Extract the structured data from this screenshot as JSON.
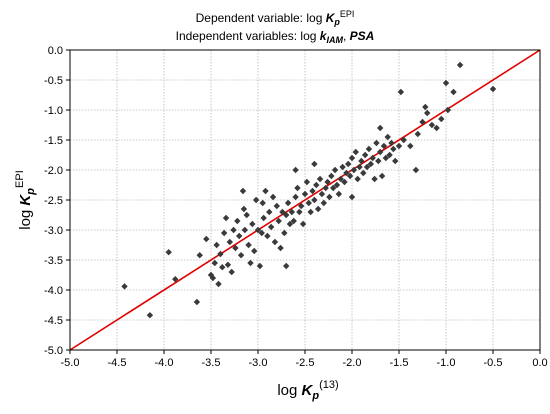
{
  "chart_data": {
    "type": "scatter",
    "title_lines": [
      {
        "prefix": "Dependent variable: log ",
        "bold_var": "K",
        "bold_sub": "p",
        "sup": "EPI",
        "mid": "",
        "bold_var2": ""
      },
      {
        "prefix": "Independent variables: log ",
        "bold_var": "k",
        "bold_sub": "IAM",
        "sup": "",
        "mid": ", ",
        "bold_var2": "PSA"
      }
    ],
    "xlabel": {
      "prefix": "log ",
      "bold_var": "K",
      "bold_sub": "p",
      "sup": "(13)"
    },
    "ylabel": {
      "prefix": "log ",
      "bold_var": "K",
      "bold_sub": "p",
      "sup": "EPI"
    },
    "xlim": [
      -5.0,
      0.0
    ],
    "ylim": [
      -5.0,
      0.0
    ],
    "x_ticks": [
      "-5.0",
      "-4.5",
      "-4.0",
      "-3.5",
      "-3.0",
      "-2.5",
      "-2.0",
      "-1.5",
      "-1.0",
      "-0.5",
      "0.0"
    ],
    "y_ticks": [
      "0.0",
      "-0.5",
      "-1.0",
      "-1.5",
      "-2.0",
      "-2.5",
      "-3.0",
      "-3.5",
      "-4.0",
      "-4.5",
      "-5.0"
    ],
    "grid": true,
    "colors": {
      "points": "#3a3a3a",
      "line": "#e00000",
      "grid": "#b8b8b8",
      "axis": "#000000"
    },
    "reference_line": {
      "x": [
        -5.0,
        0.0
      ],
      "y": [
        -5.0,
        0.0
      ]
    },
    "points": [
      [
        -4.42,
        -3.94
      ],
      [
        -4.15,
        -4.42
      ],
      [
        -3.95,
        -3.37
      ],
      [
        -3.88,
        -3.82
      ],
      [
        -3.65,
        -4.2
      ],
      [
        -3.62,
        -3.42
      ],
      [
        -3.5,
        -3.75
      ],
      [
        -3.48,
        -3.8
      ],
      [
        -3.46,
        -3.55
      ],
      [
        -3.44,
        -3.25
      ],
      [
        -3.42,
        -3.9
      ],
      [
        -3.4,
        -3.4
      ],
      [
        -3.38,
        -3.62
      ],
      [
        -3.36,
        -3.05
      ],
      [
        -3.34,
        -2.8
      ],
      [
        -3.32,
        -3.58
      ],
      [
        -3.3,
        -3.2
      ],
      [
        -3.28,
        -3.7
      ],
      [
        -3.26,
        -3.0
      ],
      [
        -3.24,
        -3.3
      ],
      [
        -3.22,
        -2.85
      ],
      [
        -3.2,
        -3.1
      ],
      [
        -3.18,
        -3.42
      ],
      [
        -3.16,
        -2.35
      ],
      [
        -3.14,
        -3.0
      ],
      [
        -3.12,
        -2.75
      ],
      [
        -3.1,
        -3.25
      ],
      [
        -3.08,
        -3.55
      ],
      [
        -3.06,
        -2.9
      ],
      [
        -3.04,
        -3.35
      ],
      [
        -3.02,
        -2.5
      ],
      [
        -3.0,
        -3.0
      ],
      [
        -2.98,
        -3.6
      ],
      [
        -2.96,
        -3.05
      ],
      [
        -2.94,
        -2.8
      ],
      [
        -2.92,
        -2.35
      ],
      [
        -2.9,
        -3.1
      ],
      [
        -2.88,
        -2.7
      ],
      [
        -2.86,
        -2.95
      ],
      [
        -2.84,
        -2.45
      ],
      [
        -2.82,
        -3.2
      ],
      [
        -2.8,
        -2.6
      ],
      [
        -2.78,
        -2.85
      ],
      [
        -2.76,
        -3.3
      ],
      [
        -2.74,
        -2.7
      ],
      [
        -2.72,
        -3.05
      ],
      [
        -2.7,
        -2.75
      ],
      [
        -2.68,
        -2.55
      ],
      [
        -2.66,
        -2.9
      ],
      [
        -2.64,
        -2.7
      ],
      [
        -2.62,
        -2.85
      ],
      [
        -2.6,
        -2.45
      ],
      [
        -2.58,
        -2.3
      ],
      [
        -2.56,
        -2.7
      ],
      [
        -2.54,
        -2.6
      ],
      [
        -2.52,
        -2.9
      ],
      [
        -2.5,
        -2.4
      ],
      [
        -2.48,
        -2.2
      ],
      [
        -2.46,
        -2.55
      ],
      [
        -2.44,
        -2.7
      ],
      [
        -2.42,
        -2.35
      ],
      [
        -2.4,
        -2.5
      ],
      [
        -2.38,
        -2.25
      ],
      [
        -2.36,
        -2.65
      ],
      [
        -2.34,
        -2.15
      ],
      [
        -2.32,
        -2.4
      ],
      [
        -2.3,
        -2.55
      ],
      [
        -2.28,
        -2.3
      ],
      [
        -2.26,
        -2.2
      ],
      [
        -2.24,
        -2.45
      ],
      [
        -2.22,
        -2.1
      ],
      [
        -2.2,
        -2.3
      ],
      [
        -2.18,
        -2.0
      ],
      [
        -2.16,
        -2.25
      ],
      [
        -2.14,
        -2.4
      ],
      [
        -2.12,
        -2.15
      ],
      [
        -2.1,
        -1.95
      ],
      [
        -2.08,
        -2.2
      ],
      [
        -2.06,
        -2.05
      ],
      [
        -2.04,
        -1.9
      ],
      [
        -2.02,
        -2.1
      ],
      [
        -2.0,
        -1.8
      ],
      [
        -1.98,
        -2.0
      ],
      [
        -1.96,
        -1.7
      ],
      [
        -1.94,
        -2.15
      ],
      [
        -1.92,
        -1.95
      ],
      [
        -1.9,
        -1.85
      ],
      [
        -1.88,
        -2.05
      ],
      [
        -1.86,
        -1.75
      ],
      [
        -1.84,
        -1.95
      ],
      [
        -1.82,
        -1.65
      ],
      [
        -1.8,
        -1.9
      ],
      [
        -1.78,
        -1.8
      ],
      [
        -1.76,
        -2.15
      ],
      [
        -1.74,
        -1.55
      ],
      [
        -1.72,
        -1.85
      ],
      [
        -1.7,
        -1.7
      ],
      [
        -1.68,
        -2.1
      ],
      [
        -1.66,
        -1.6
      ],
      [
        -1.64,
        -1.8
      ],
      [
        -1.62,
        -1.45
      ],
      [
        -1.6,
        -1.75
      ],
      [
        -1.58,
        -1.55
      ],
      [
        -1.56,
        -1.65
      ],
      [
        -1.54,
        -1.85
      ],
      [
        -1.5,
        -1.6
      ],
      [
        -1.48,
        -0.7
      ],
      [
        -1.45,
        -1.5
      ],
      [
        -1.38,
        -1.6
      ],
      [
        -1.32,
        -2.0
      ],
      [
        -1.3,
        -1.4
      ],
      [
        -1.25,
        -1.2
      ],
      [
        -1.22,
        -0.95
      ],
      [
        -1.2,
        -1.05
      ],
      [
        -1.15,
        -1.25
      ],
      [
        -1.1,
        -1.3
      ],
      [
        -1.05,
        -1.15
      ],
      [
        -1.0,
        -0.55
      ],
      [
        -0.98,
        -1.0
      ],
      [
        -0.92,
        -0.7
      ],
      [
        -0.85,
        -0.25
      ],
      [
        -0.5,
        -0.65
      ],
      [
        -2.6,
        -2.0
      ],
      [
        -2.95,
        -2.55
      ],
      [
        -3.55,
        -3.15
      ],
      [
        -2.7,
        -3.6
      ],
      [
        -2.4,
        -1.9
      ],
      [
        -1.7,
        -1.3
      ],
      [
        -2.0,
        -2.45
      ],
      [
        -3.15,
        -2.65
      ]
    ]
  }
}
